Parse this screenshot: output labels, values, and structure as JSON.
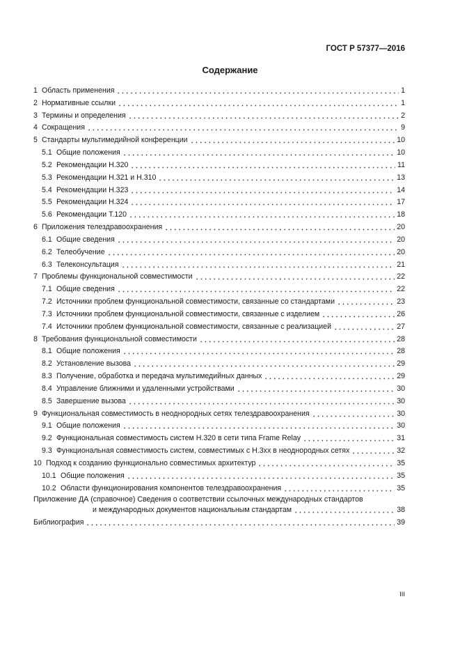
{
  "header": {
    "doc_id": "ГОСТ Р 57377—2016"
  },
  "title": "Содержание",
  "entries": [
    {
      "num": "1",
      "text": "Область применения",
      "page": 1
    },
    {
      "num": "2",
      "text": "Нормативные ссылки",
      "page": 1
    },
    {
      "num": "3",
      "text": "Термины и определения",
      "page": 2
    },
    {
      "num": "4",
      "text": "Сокращения",
      "page": 9
    },
    {
      "num": "5",
      "text": "Стандарты мультимедийной конференции",
      "page": 10
    },
    {
      "num": "5.1",
      "text": "Общие положения",
      "page": 10
    },
    {
      "num": "5.2",
      "text": "Рекомендации Н.320",
      "page": 11
    },
    {
      "num": "5.3",
      "text": "Рекомендации Н.321 и Н.310",
      "page": 13
    },
    {
      "num": "5.4",
      "text": "Рекомендации Н.323",
      "page": 14
    },
    {
      "num": "5.5",
      "text": "Рекомендации Н.324",
      "page": 17
    },
    {
      "num": "5.6",
      "text": "Рекомендации Т.120",
      "page": 18
    },
    {
      "num": "6",
      "text": "Приложения телездравоохранения",
      "page": 20
    },
    {
      "num": "6.1",
      "text": "Общие сведения",
      "page": 20
    },
    {
      "num": "6.2",
      "text": "Телеобучение",
      "page": 20
    },
    {
      "num": "6.3",
      "text": "Телеконсультация",
      "page": 21
    },
    {
      "num": "7",
      "text": "Проблемы функциональной совместимости",
      "page": 22
    },
    {
      "num": "7.1",
      "text": "Общие сведения",
      "page": 22
    },
    {
      "num": "7.2",
      "text": "Источники проблем функциональной совместимости, связанные со стандартами",
      "page": 23
    },
    {
      "num": "7.3",
      "text": "Источники проблем функциональной совместимости, связанные с изделием",
      "page": 26
    },
    {
      "num": "7.4",
      "text": "Источники проблем функциональной совместимости, связанные с реализацией",
      "page": 27
    },
    {
      "num": "8",
      "text": "Требования функциональной совместимости",
      "page": 28
    },
    {
      "num": "8.1",
      "text": "Общие положения",
      "page": 28
    },
    {
      "num": "8.2",
      "text": "Установление вызова",
      "page": 29
    },
    {
      "num": "8.3",
      "text": "Получение, обработка и передача мультимедийных данных",
      "page": 29
    },
    {
      "num": "8.4",
      "text": "Управление ближними и удаленными устройствами",
      "page": 30
    },
    {
      "num": "8.5",
      "text": "Завершение вызова",
      "page": 30
    },
    {
      "num": "9",
      "text": "Функциональная совместимость в неоднородных сетях телездравоохранения",
      "page": 30
    },
    {
      "num": "9.1",
      "text": "Общие положения",
      "page": 30
    },
    {
      "num": "9.2",
      "text": "Функциональная совместимость систем Н.320 в сети типа Frame Relay",
      "page": 31
    },
    {
      "num": "9.3",
      "text": "Функциональная совместимость систем, совместимых с Н.3хх в неоднородных сетях",
      "page": 32
    },
    {
      "num": "10",
      "text": "Подход к созданию функционально совместимых архитектур",
      "page": 35
    },
    {
      "num": "10.1",
      "text": "Общие положения",
      "page": 35
    },
    {
      "num": "10.2",
      "text": "Области функционирования компонентов телездравоохранения",
      "page": 35
    }
  ],
  "appendix": {
    "lines": [
      "Приложение ДА (справочное) Сведения о соответствии ссылочных международных стандартов",
      "и международных документов национальным стандартам"
    ],
    "page": 38
  },
  "bibliography": {
    "text": "Библиография",
    "page": 39
  },
  "footer": {
    "page_number": "III"
  }
}
